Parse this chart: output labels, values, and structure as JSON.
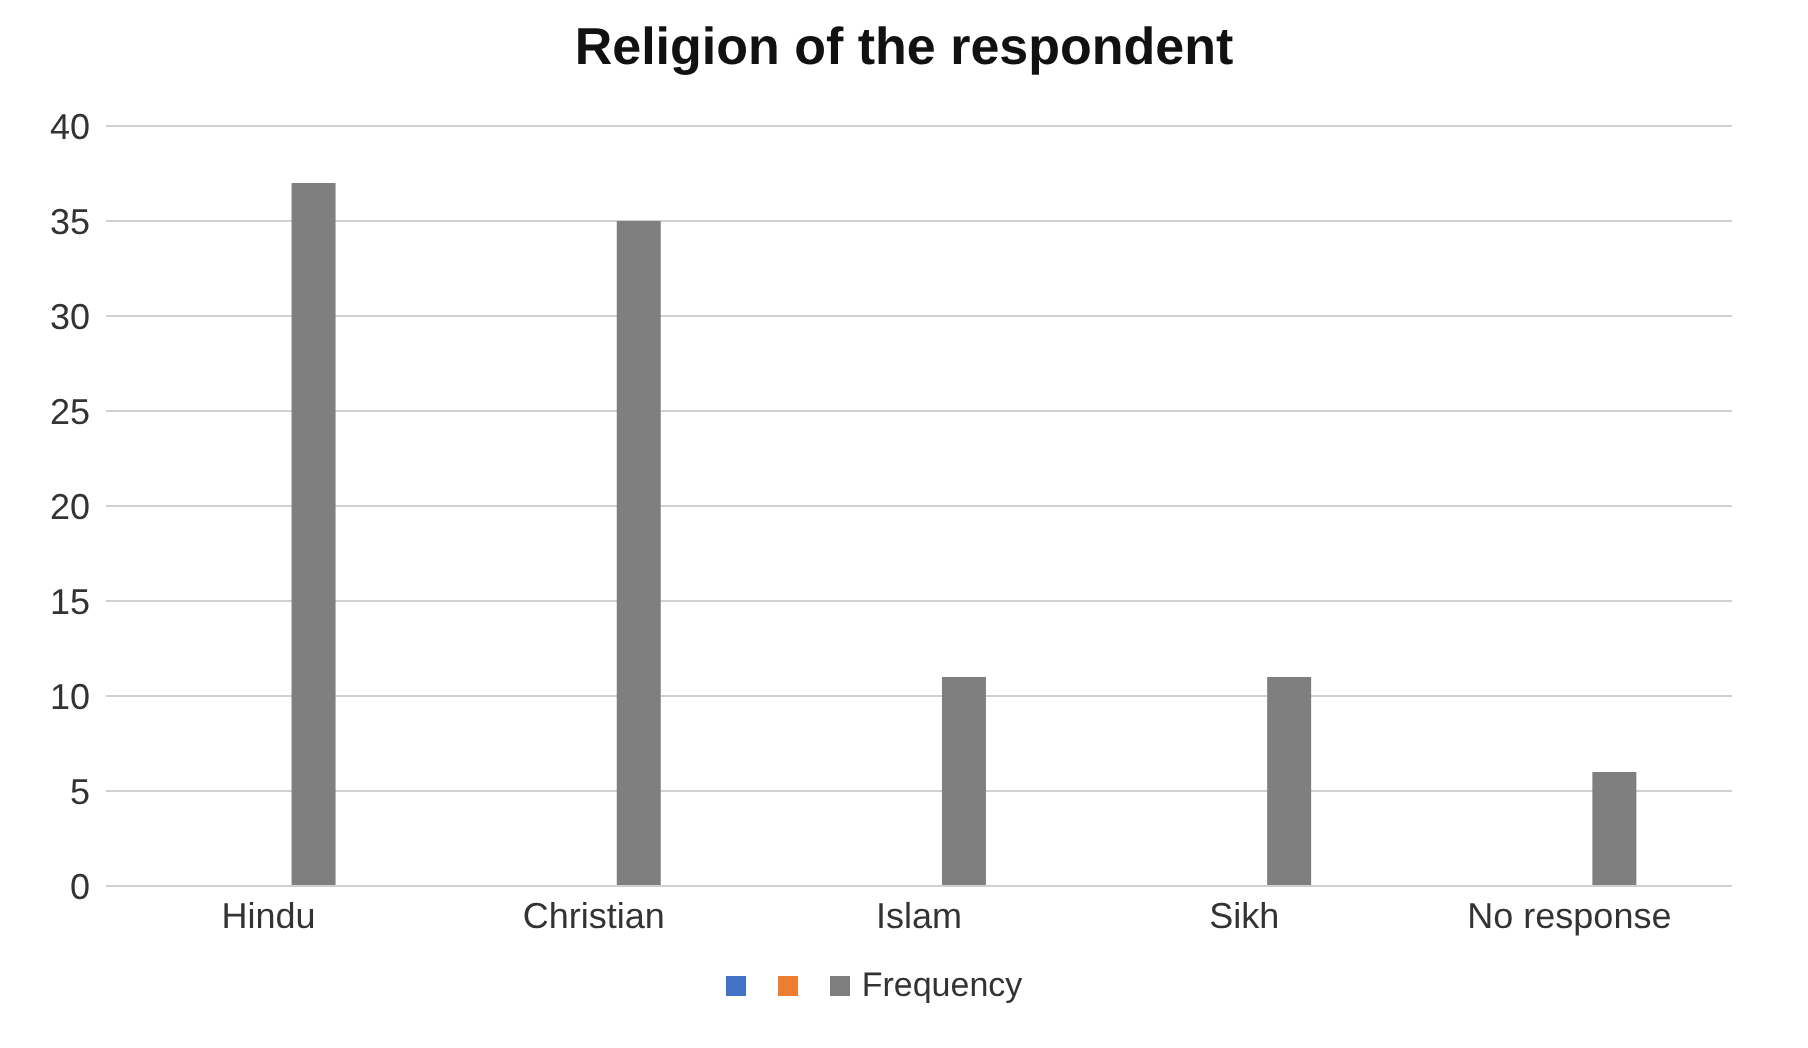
{
  "chart_data": {
    "type": "bar",
    "title": "Religion of the respondent",
    "categories": [
      "Hindu",
      "Christian",
      "Islam",
      "Sikh",
      "No response"
    ],
    "series": [
      {
        "color": "#4472c4",
        "values": [
          null,
          null,
          null,
          null,
          null
        ]
      },
      {
        "color": "#ed7d31",
        "values": [
          null,
          null,
          null,
          null,
          null
        ]
      },
      {
        "name": "Frequency",
        "color": "#7f7f7f",
        "values": [
          37,
          35,
          11,
          11,
          6
        ]
      }
    ],
    "ylim": [
      0,
      40
    ],
    "yticks": [
      0,
      5,
      10,
      15,
      20,
      25,
      30,
      35,
      40
    ],
    "grid": "y",
    "legend": "bottom"
  }
}
